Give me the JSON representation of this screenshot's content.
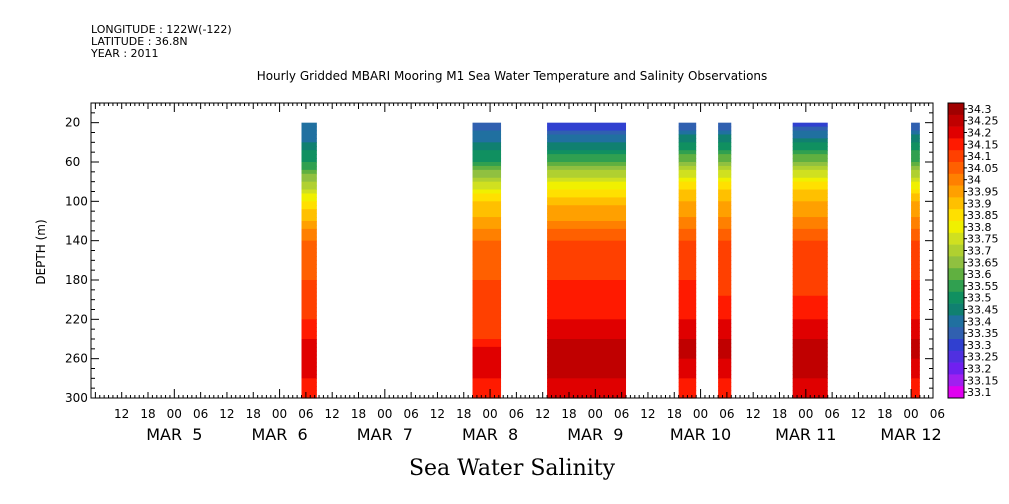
{
  "header": {
    "longitude": "LONGITUDE : 122W(-122)",
    "latitude": "LATITUDE : 36.8N",
    "year": "YEAR : 2011"
  },
  "chart_data": {
    "type": "heatmap",
    "title": "Hourly Gridded MBARI Mooring M1 Sea Water Temperature and Salinity Observations",
    "bottom_title": "Sea Water Salinity",
    "ylabel": "DEPTH (m)",
    "y_inverted": true,
    "ylim": [
      0,
      300
    ],
    "y_ticks": [
      20,
      60,
      100,
      140,
      180,
      220,
      260,
      300
    ],
    "xlim_hours_from_mar5_00": [
      -19,
      173
    ],
    "hour_tick_labels": [
      "12",
      "18",
      "00",
      "06",
      "12",
      "18",
      "00",
      "06",
      "12",
      "18",
      "00",
      "06",
      "12",
      "18",
      "00",
      "06",
      "12",
      "18",
      "00",
      "06",
      "12",
      "18",
      "00",
      "06",
      "12",
      "18",
      "00",
      "06",
      "12",
      "18",
      "00",
      "06"
    ],
    "day_labels": [
      "MAR  5",
      "MAR  6",
      "MAR  7",
      "MAR  8",
      "MAR  9",
      "MAR 10",
      "MAR 11",
      "MAR 12"
    ],
    "colorbar": {
      "levels": [
        "34.3",
        "34.25",
        "34.2",
        "34.15",
        "34.1",
        "34.05",
        "34",
        "33.95",
        "33.9",
        "33.85",
        "33.8",
        "33.75",
        "33.7",
        "33.65",
        "33.6",
        "33.55",
        "33.5",
        "33.45",
        "33.4",
        "33.35",
        "33.3",
        "33.25",
        "33.2",
        "33.15",
        "33.1"
      ],
      "colors": [
        "#a00000",
        "#c00000",
        "#e00000",
        "#ff1a00",
        "#ff4000",
        "#ff6000",
        "#ff8000",
        "#ffa000",
        "#ffc000",
        "#ffe000",
        "#f0f000",
        "#d0e020",
        "#b0d030",
        "#90c040",
        "#60b040",
        "#30a050",
        "#109060",
        "#108070",
        "#2070a0",
        "#3060b0",
        "#3040d0",
        "#5030e0",
        "#7020f0",
        "#a020f0",
        "#e000f0"
      ]
    },
    "segments": [
      {
        "hour_range": [
          29,
          32.5
        ],
        "profile": [
          [
            20,
            33.4
          ],
          [
            40,
            33.45
          ],
          [
            60,
            33.55
          ],
          [
            80,
            33.7
          ],
          [
            100,
            33.85
          ],
          [
            120,
            33.95
          ],
          [
            140,
            34.05
          ],
          [
            180,
            34.1
          ],
          [
            220,
            34.15
          ],
          [
            240,
            34.2
          ],
          [
            260,
            34.25
          ],
          [
            280,
            34.2
          ],
          [
            300,
            34.15
          ]
        ]
      },
      {
        "hour_range": [
          68,
          74.5
        ],
        "profile": [
          [
            20,
            33.35
          ],
          [
            40,
            33.45
          ],
          [
            60,
            33.55
          ],
          [
            80,
            33.75
          ],
          [
            100,
            33.9
          ],
          [
            120,
            33.97
          ],
          [
            140,
            34.05
          ],
          [
            180,
            34.1
          ],
          [
            220,
            34.12
          ],
          [
            240,
            34.15
          ],
          [
            260,
            34.25
          ],
          [
            280,
            34.2
          ],
          [
            300,
            34.15
          ]
        ]
      },
      {
        "hour_range": [
          85,
          103
        ],
        "profile": [
          [
            20,
            33.3
          ],
          [
            40,
            33.45
          ],
          [
            60,
            33.6
          ],
          [
            80,
            33.8
          ],
          [
            100,
            33.93
          ],
          [
            120,
            34.0
          ],
          [
            140,
            34.1
          ],
          [
            180,
            34.15
          ],
          [
            220,
            34.2
          ],
          [
            240,
            34.25
          ],
          [
            260,
            34.3
          ],
          [
            280,
            34.25
          ],
          [
            300,
            34.2
          ]
        ]
      },
      {
        "hour_range": [
          115,
          119
        ],
        "profile": [
          [
            20,
            33.35
          ],
          [
            40,
            33.5
          ],
          [
            60,
            33.65
          ],
          [
            80,
            33.85
          ],
          [
            100,
            33.95
          ],
          [
            120,
            34.02
          ],
          [
            140,
            34.1
          ],
          [
            180,
            34.15
          ],
          [
            220,
            34.2
          ],
          [
            240,
            34.25
          ],
          [
            260,
            34.25
          ],
          [
            280,
            34.2
          ],
          [
            300,
            34.15
          ]
        ]
      },
      {
        "hour_range": [
          124,
          127
        ],
        "profile": [
          [
            20,
            33.35
          ],
          [
            40,
            33.5
          ],
          [
            60,
            33.65
          ],
          [
            80,
            33.85
          ],
          [
            100,
            33.95
          ],
          [
            120,
            34.02
          ],
          [
            140,
            34.1
          ],
          [
            180,
            34.12
          ],
          [
            220,
            34.2
          ],
          [
            240,
            34.25
          ],
          [
            260,
            34.25
          ],
          [
            280,
            34.2
          ],
          [
            300,
            34.15
          ]
        ]
      },
      {
        "hour_range": [
          141,
          149
        ],
        "profile": [
          [
            20,
            33.3
          ],
          [
            40,
            33.5
          ],
          [
            60,
            33.65
          ],
          [
            80,
            33.85
          ],
          [
            100,
            33.95
          ],
          [
            120,
            34.02
          ],
          [
            140,
            34.1
          ],
          [
            180,
            34.12
          ],
          [
            220,
            34.2
          ],
          [
            240,
            34.25
          ],
          [
            260,
            34.3
          ],
          [
            280,
            34.25
          ],
          [
            300,
            34.2
          ]
        ]
      },
      {
        "hour_range": [
          168,
          170
        ],
        "profile": [
          [
            20,
            33.35
          ],
          [
            40,
            33.5
          ],
          [
            60,
            33.6
          ],
          [
            80,
            33.8
          ],
          [
            100,
            33.95
          ],
          [
            120,
            34.02
          ],
          [
            140,
            34.1
          ],
          [
            180,
            34.15
          ],
          [
            220,
            34.2
          ],
          [
            240,
            34.25
          ],
          [
            260,
            34.25
          ],
          [
            280,
            34.2
          ],
          [
            300,
            34.15
          ]
        ]
      }
    ]
  }
}
